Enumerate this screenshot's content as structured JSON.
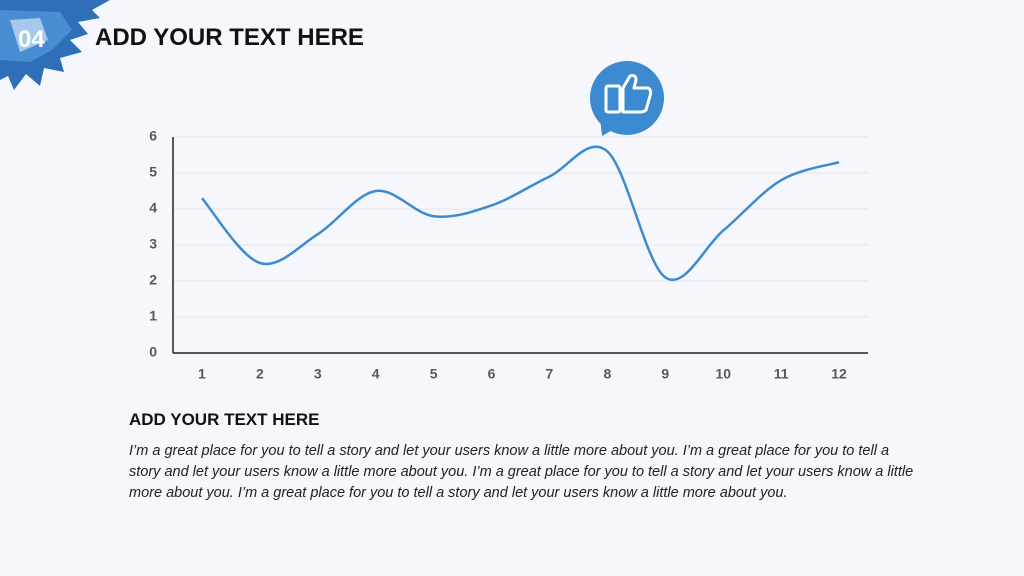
{
  "slide": {
    "number": "04",
    "title": "ADD YOUR TEXT HERE"
  },
  "section": {
    "heading": "ADD YOUR TEXT HERE",
    "body": "I’m a great place for you to tell a story and let your users know a little more about you. I’m a great place for you to tell a story and let your users know a little more about you. I’m a great place for you to tell a story and let your users know a little more about you. I’m a great place for you to tell a story and let your users know a little more about you."
  },
  "chart_data": {
    "type": "line",
    "x": [
      1,
      2,
      3,
      4,
      5,
      6,
      7,
      8,
      9,
      10,
      11,
      12
    ],
    "values": [
      4.3,
      2.5,
      3.3,
      4.5,
      3.8,
      4.1,
      4.9,
      5.6,
      2.1,
      3.4,
      4.8,
      5.3
    ],
    "color": "#3c8ad0",
    "xlim": [
      0.5,
      12.5
    ],
    "xticks": [
      1,
      2,
      3,
      4,
      5,
      6,
      7,
      8,
      9,
      10,
      11,
      12
    ],
    "ylim": [
      0,
      6
    ],
    "yticks": [
      0,
      1,
      2,
      3,
      4,
      5,
      6
    ],
    "grid": true
  }
}
